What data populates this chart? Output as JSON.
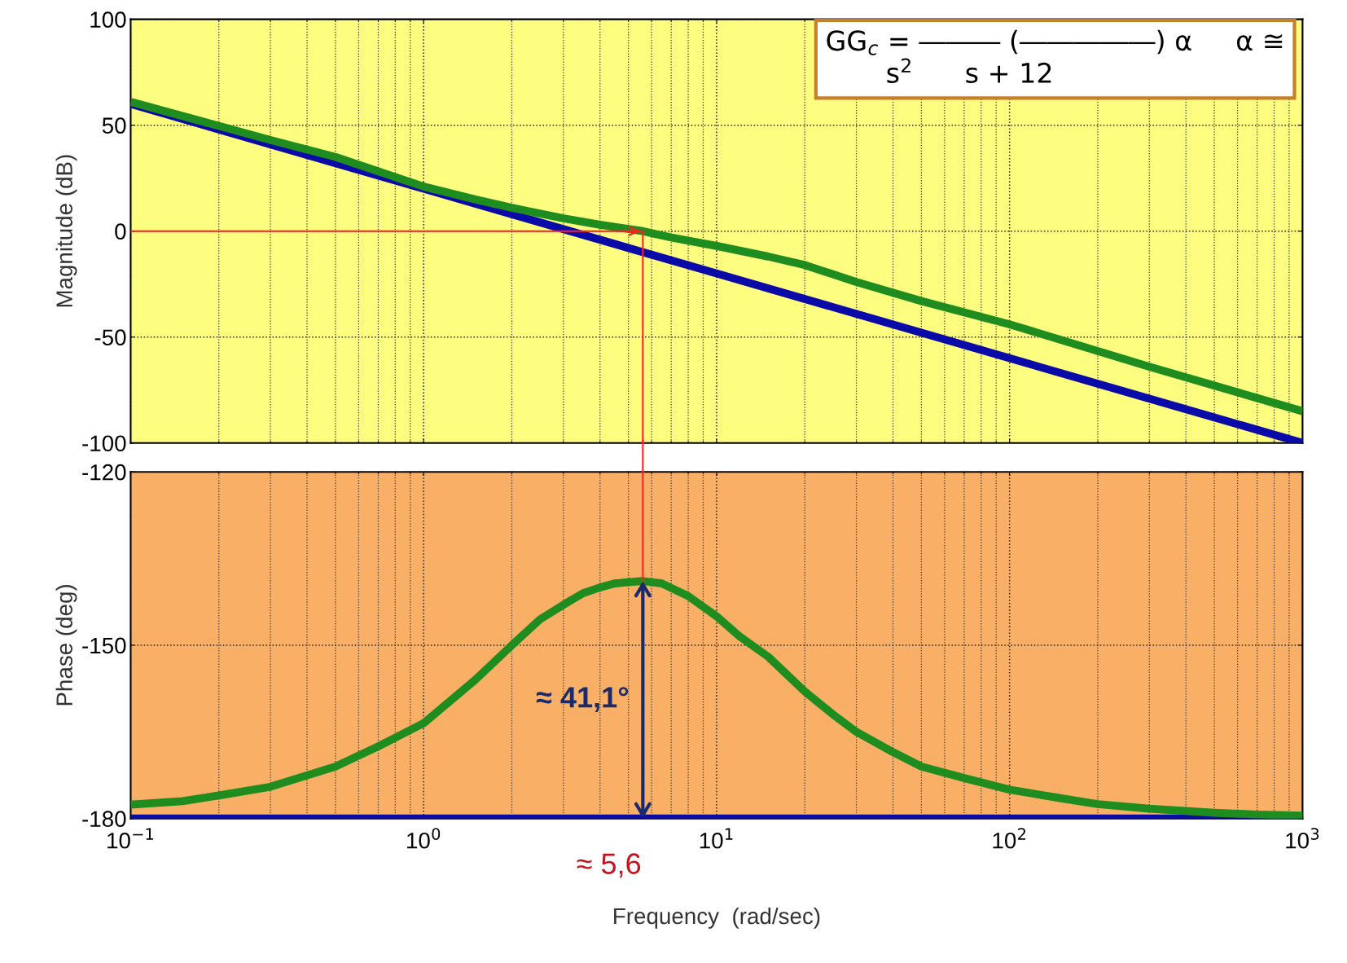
{
  "chart_data": [
    {
      "type": "line",
      "ylabel": "Magnitude (dB)",
      "xlim": [
        0.1,
        1000
      ],
      "ylim": [
        -100,
        100
      ],
      "yticks": [
        -100,
        -50,
        0,
        50,
        100
      ],
      "log": "x",
      "grid": true,
      "tick_labels": "y",
      "ref_lines": [
        {
          "axis": "y",
          "value": 0,
          "color": "#ff2020"
        },
        {
          "axis": "x",
          "value": 5.6,
          "color": "#ff2020"
        }
      ],
      "annotations": [
        "GG$_{c}$ = ――― (―――――) α     α ≅\n       s$^{2}$      s + 12"
      ],
      "series": [
        {
          "color": "#0a0aa8",
          "x": [
            0.1,
            1,
            10,
            100,
            1000
          ],
          "values": [
            60,
            20,
            -20,
            -60,
            -100
          ]
        },
        {
          "color": "#1e8c1e",
          "x": [
            0.1,
            0.3,
            0.5,
            1,
            1.5,
            2,
            3,
            4,
            5.6,
            7,
            10,
            15,
            20,
            30,
            50,
            100,
            300,
            1000
          ],
          "values": [
            61,
            43,
            35,
            21,
            15,
            11,
            6,
            3,
            0,
            -3,
            -7,
            -12,
            -16,
            -24,
            -33,
            -44,
            -64,
            -85
          ]
        }
      ]
    },
    {
      "type": "line",
      "ylabel": "Phase (deg)",
      "xlabel": "Frequency  (rad/sec)",
      "xlim": [
        0.1,
        1000
      ],
      "ylim": [
        -180,
        -120
      ],
      "yticks": [
        -180,
        -150,
        -120
      ],
      "log": "x",
      "grid": true,
      "xticks": [
        {
          "value": 0.1,
          "label": "10$^{−1}$"
        },
        {
          "value": 1,
          "label": "10$^{0}$"
        },
        {
          "value": 10,
          "label": "10$^{1}$"
        },
        {
          "value": 100,
          "label": "10$^{2}$"
        },
        {
          "value": 1000,
          "label": "10$^{3}$"
        }
      ],
      "ref_lines": [
        {
          "axis": "x",
          "value": 5.6,
          "color": "#ff2020"
        }
      ],
      "annotations": [
        {
          "text": "≈ 5,6",
          "x": 5.6,
          "y": -180
        },
        "≈ 41,1°"
      ],
      "series": [
        {
          "color": "#0a0aa8",
          "x": [
            0.1,
            1000
          ],
          "values": [
            -180,
            -180
          ]
        },
        {
          "color": "#1e8c1e",
          "x": [
            0.1,
            0.15,
            0.2,
            0.3,
            0.5,
            0.7,
            1,
            1.5,
            2,
            2.5,
            3,
            3.5,
            4,
            4.5,
            5.6,
            6.5,
            8,
            10,
            12,
            15,
            20,
            25,
            30,
            40,
            50,
            70,
            100,
            150,
            200,
            300,
            500,
            700,
            1000
          ],
          "values": [
            -177.6,
            -177,
            -176,
            -174.5,
            -171,
            -167.5,
            -163.5,
            -156,
            -150,
            -145.5,
            -143,
            -141,
            -140,
            -139.3,
            -138.9,
            -139.3,
            -141.5,
            -145,
            -148.5,
            -152,
            -158,
            -162,
            -165,
            -168.5,
            -171,
            -173,
            -175,
            -176.5,
            -177.5,
            -178.3,
            -179,
            -179.3,
            -179.5
          ]
        }
      ]
    }
  ]
}
